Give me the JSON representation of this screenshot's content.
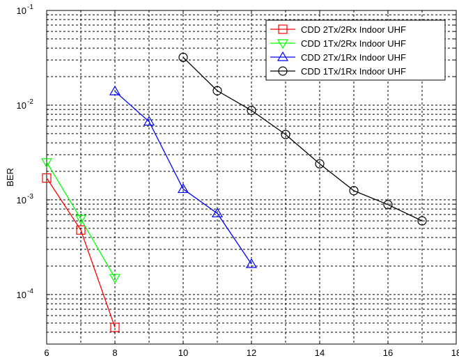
{
  "chart_data": {
    "type": "line",
    "title": "",
    "xlabel": "",
    "ylabel": "BER",
    "xlim": [
      6,
      18
    ],
    "ylim": [
      3e-05,
      0.1
    ],
    "yscale": "log",
    "grid": true,
    "legend_position": "top-right",
    "xticks": [
      6,
      8,
      10,
      12,
      14,
      16,
      18
    ],
    "yticks": [
      {
        "base": "10",
        "exp": "-1",
        "value": 0.1
      },
      {
        "base": "10",
        "exp": "-2",
        "value": 0.01
      },
      {
        "base": "10",
        "exp": "-3",
        "value": 0.001
      },
      {
        "base": "10",
        "exp": "-4",
        "value": 0.0001
      }
    ],
    "series": [
      {
        "name": "CDD 2Tx/2Rx Indoor UHF",
        "color": "#ff0000",
        "marker": "square",
        "x": [
          6,
          7,
          8
        ],
        "y": [
          0.0017,
          0.00048,
          4.5e-05
        ]
      },
      {
        "name": "CDD 1Tx/2Rx Indoor UHF",
        "color": "#00ff00",
        "marker": "triangle-down",
        "x": [
          6,
          7,
          8
        ],
        "y": [
          0.0025,
          0.00063,
          0.00015
        ]
      },
      {
        "name": "CDD 2Tx/1Rx Indoor UHF",
        "color": "#0000ff",
        "marker": "triangle-up",
        "x": [
          8,
          9,
          10,
          11,
          12
        ],
        "y": [
          0.014,
          0.0067,
          0.0013,
          0.00072,
          0.00021
        ]
      },
      {
        "name": "CDD 1Tx/1Rx Indoor UHF",
        "color": "#000000",
        "marker": "circle",
        "x": [
          10,
          11,
          12,
          13,
          14,
          15,
          16,
          17
        ],
        "y": [
          0.032,
          0.0142,
          0.0088,
          0.0049,
          0.0024,
          0.00125,
          0.00089,
          0.0006
        ]
      }
    ]
  }
}
